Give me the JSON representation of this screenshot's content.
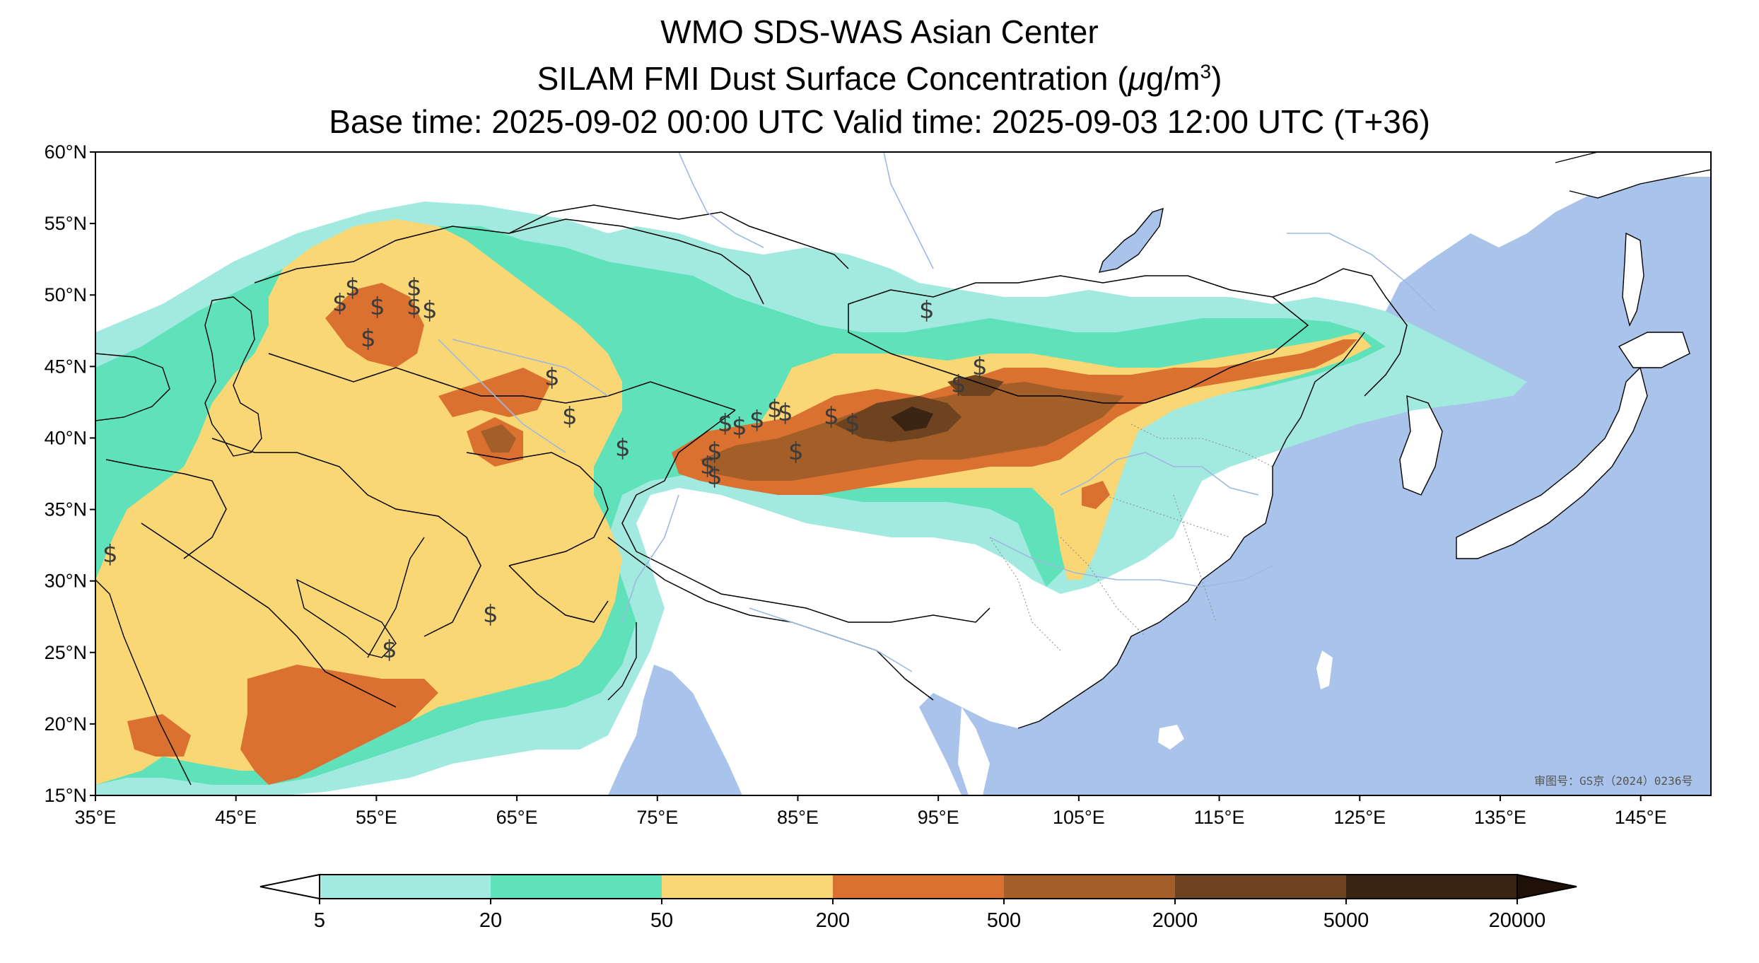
{
  "title": {
    "line1": "WMO SDS-WAS Asian Center",
    "line2_prefix": "SILAM FMI Dust Surface Concentration (",
    "line2_mu": "μ",
    "line2_unit": "g/m",
    "line2_sup": "3",
    "line2_suffix": ")",
    "line3": "Base time: 2025-09-02 00:00 UTC Valid time: 2025-09-03 12:00 UTC (T+36)"
  },
  "map": {
    "lon_range": [
      35,
      150
    ],
    "lat_range": [
      15,
      60
    ],
    "lat_ticks": [
      "60°N",
      "55°N",
      "50°N",
      "45°N",
      "40°N",
      "35°N",
      "30°N",
      "25°N",
      "20°N",
      "15°N"
    ],
    "lon_ticks": [
      "35°E",
      "45°E",
      "55°E",
      "65°E",
      "75°E",
      "85°E",
      "95°E",
      "105°E",
      "115°E",
      "125°E",
      "135°E",
      "145°E"
    ],
    "watermark": "审图号：GS京（2024）0236号",
    "ocean_color": "#a9c3ea",
    "land_color": "#ffffff",
    "symbol": "$"
  },
  "colorbar": {
    "levels": [
      "5",
      "20",
      "50",
      "200",
      "500",
      "2000",
      "5000",
      "20000"
    ],
    "colors": [
      "#a2eae0",
      "#5fe1b9",
      "#f9d774",
      "#db7130",
      "#a45e28",
      "#6d4320",
      "#3b2512"
    ]
  }
}
